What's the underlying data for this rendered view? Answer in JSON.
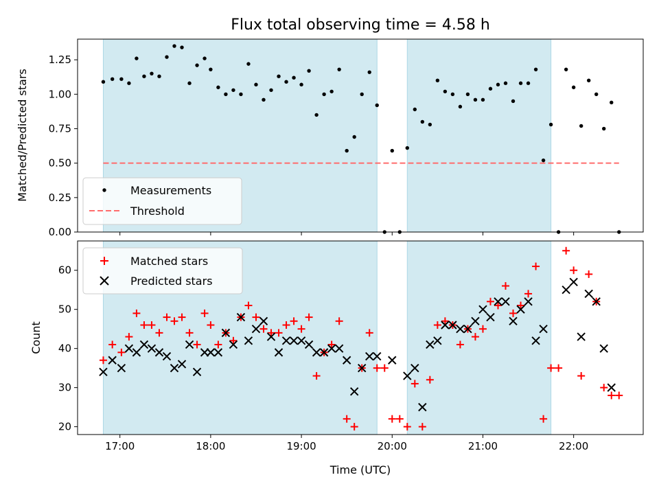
{
  "chart_data": [
    {
      "type": "scatter",
      "title": "Flux total observing time = 4.58 h",
      "ylabel": "Matched/Predicted stars",
      "xlabel": "",
      "xlim": [
        "16:32",
        "22:46"
      ],
      "ylim": [
        0,
        1.4
      ],
      "yticks": [
        "0.00",
        "0.25",
        "0.50",
        "0.75",
        "1.00",
        "1.25"
      ],
      "legend_position": "lower-left",
      "shaded_intervals": [
        [
          "16:49",
          "19:50"
        ],
        [
          "20:10",
          "21:45"
        ]
      ],
      "threshold": {
        "name": "Threshold",
        "value": 0.5,
        "x_range": [
          "16:49",
          "22:30"
        ],
        "color": "#ff6b6b",
        "style": "dashed"
      },
      "series": [
        {
          "name": "Measurements",
          "color": "#000000",
          "marker": "dot",
          "points": [
            [
              "16:49",
              1.09
            ],
            [
              "16:55",
              1.11
            ],
            [
              "17:01",
              1.11
            ],
            [
              "17:06",
              1.08
            ],
            [
              "17:11",
              1.26
            ],
            [
              "17:16",
              1.13
            ],
            [
              "17:21",
              1.15
            ],
            [
              "17:26",
              1.13
            ],
            [
              "17:31",
              1.27
            ],
            [
              "17:36",
              1.35
            ],
            [
              "17:41",
              1.34
            ],
            [
              "17:46",
              1.08
            ],
            [
              "17:51",
              1.21
            ],
            [
              "17:56",
              1.26
            ],
            [
              "18:00",
              1.18
            ],
            [
              "18:05",
              1.05
            ],
            [
              "18:10",
              1.0
            ],
            [
              "18:15",
              1.03
            ],
            [
              "18:20",
              1.0
            ],
            [
              "18:25",
              1.22
            ],
            [
              "18:30",
              1.07
            ],
            [
              "18:35",
              0.96
            ],
            [
              "18:40",
              1.03
            ],
            [
              "18:45",
              1.13
            ],
            [
              "18:50",
              1.09
            ],
            [
              "18:55",
              1.12
            ],
            [
              "19:00",
              1.07
            ],
            [
              "19:05",
              1.17
            ],
            [
              "19:10",
              0.85
            ],
            [
              "19:15",
              1.0
            ],
            [
              "19:20",
              1.02
            ],
            [
              "19:25",
              1.18
            ],
            [
              "19:30",
              0.59
            ],
            [
              "19:35",
              0.69
            ],
            [
              "19:40",
              1.0
            ],
            [
              "19:45",
              1.16
            ],
            [
              "19:50",
              0.92
            ],
            [
              "19:55",
              0.0
            ],
            [
              "20:00",
              0.59
            ],
            [
              "20:05",
              0.0
            ],
            [
              "20:10",
              0.61
            ],
            [
              "20:15",
              0.89
            ],
            [
              "20:20",
              0.8
            ],
            [
              "20:25",
              0.78
            ],
            [
              "20:30",
              1.1
            ],
            [
              "20:35",
              1.02
            ],
            [
              "20:40",
              1.0
            ],
            [
              "20:45",
              0.91
            ],
            [
              "20:50",
              1.0
            ],
            [
              "20:55",
              0.96
            ],
            [
              "21:00",
              0.96
            ],
            [
              "21:05",
              1.04
            ],
            [
              "21:10",
              1.07
            ],
            [
              "21:15",
              1.08
            ],
            [
              "21:20",
              0.95
            ],
            [
              "21:25",
              1.08
            ],
            [
              "21:30",
              1.08
            ],
            [
              "21:35",
              1.18
            ],
            [
              "21:40",
              0.52
            ],
            [
              "21:45",
              0.78
            ],
            [
              "21:50",
              0.0
            ],
            [
              "21:55",
              1.18
            ],
            [
              "22:00",
              1.05
            ],
            [
              "22:05",
              0.77
            ],
            [
              "22:10",
              1.1
            ],
            [
              "22:15",
              1.0
            ],
            [
              "22:20",
              0.75
            ],
            [
              "22:25",
              0.94
            ],
            [
              "22:30",
              0.0
            ]
          ]
        }
      ]
    },
    {
      "type": "scatter",
      "title": "",
      "ylabel": "Count",
      "xlabel": "Time (UTC)",
      "xlim": [
        "16:32",
        "22:46"
      ],
      "ylim": [
        18,
        67.5
      ],
      "yticks": [
        "20",
        "30",
        "40",
        "50",
        "60"
      ],
      "xticks": [
        "17:00",
        "18:00",
        "19:00",
        "20:00",
        "21:00",
        "22:00"
      ],
      "legend_position": "upper-left",
      "shaded_intervals": [
        [
          "16:49",
          "19:50"
        ],
        [
          "20:10",
          "21:45"
        ]
      ],
      "series": [
        {
          "name": "Matched stars",
          "color": "#ff0000",
          "marker": "plus",
          "points": [
            [
              "16:49",
              37
            ],
            [
              "16:55",
              41
            ],
            [
              "17:01",
              39
            ],
            [
              "17:06",
              43
            ],
            [
              "17:11",
              49
            ],
            [
              "17:16",
              46
            ],
            [
              "17:21",
              46
            ],
            [
              "17:26",
              44
            ],
            [
              "17:31",
              48
            ],
            [
              "17:36",
              47
            ],
            [
              "17:41",
              48
            ],
            [
              "17:46",
              44
            ],
            [
              "17:51",
              41
            ],
            [
              "17:56",
              49
            ],
            [
              "18:00",
              46
            ],
            [
              "18:05",
              41
            ],
            [
              "18:10",
              44
            ],
            [
              "18:15",
              42
            ],
            [
              "18:20",
              48
            ],
            [
              "18:25",
              51
            ],
            [
              "18:30",
              48
            ],
            [
              "18:35",
              45
            ],
            [
              "18:40",
              44
            ],
            [
              "18:45",
              44
            ],
            [
              "18:50",
              46
            ],
            [
              "18:55",
              47
            ],
            [
              "19:00",
              45
            ],
            [
              "19:05",
              48
            ],
            [
              "19:10",
              33
            ],
            [
              "19:15",
              39
            ],
            [
              "19:20",
              41
            ],
            [
              "19:25",
              47
            ],
            [
              "19:30",
              22
            ],
            [
              "19:35",
              20
            ],
            [
              "19:40",
              35
            ],
            [
              "19:45",
              44
            ],
            [
              "19:50",
              35
            ],
            [
              "19:55",
              35
            ],
            [
              "20:00",
              22
            ],
            [
              "20:05",
              22
            ],
            [
              "20:10",
              20
            ],
            [
              "20:15",
              31
            ],
            [
              "20:20",
              20
            ],
            [
              "20:25",
              32
            ],
            [
              "20:30",
              46
            ],
            [
              "20:35",
              47
            ],
            [
              "20:40",
              46
            ],
            [
              "20:45",
              41
            ],
            [
              "20:50",
              45
            ],
            [
              "20:55",
              43
            ],
            [
              "21:00",
              45
            ],
            [
              "21:05",
              52
            ],
            [
              "21:10",
              51
            ],
            [
              "21:15",
              56
            ],
            [
              "21:20",
              49
            ],
            [
              "21:25",
              51
            ],
            [
              "21:30",
              54
            ],
            [
              "21:35",
              61
            ],
            [
              "21:40",
              22
            ],
            [
              "21:45",
              35
            ],
            [
              "21:50",
              35
            ],
            [
              "21:55",
              65
            ],
            [
              "22:00",
              60
            ],
            [
              "22:05",
              33
            ],
            [
              "22:10",
              59
            ],
            [
              "22:15",
              52
            ],
            [
              "22:20",
              30
            ],
            [
              "22:25",
              28
            ],
            [
              "22:30",
              28
            ]
          ]
        },
        {
          "name": "Predicted stars",
          "color": "#000000",
          "marker": "x",
          "points": [
            [
              "16:49",
              34
            ],
            [
              "16:55",
              37
            ],
            [
              "17:01",
              35
            ],
            [
              "17:06",
              40
            ],
            [
              "17:11",
              39
            ],
            [
              "17:16",
              41
            ],
            [
              "17:21",
              40
            ],
            [
              "17:26",
              39
            ],
            [
              "17:31",
              38
            ],
            [
              "17:36",
              35
            ],
            [
              "17:41",
              36
            ],
            [
              "17:46",
              41
            ],
            [
              "17:51",
              34
            ],
            [
              "17:56",
              39
            ],
            [
              "18:00",
              39
            ],
            [
              "18:05",
              39
            ],
            [
              "18:10",
              44
            ],
            [
              "18:15",
              41
            ],
            [
              "18:20",
              48
            ],
            [
              "18:25",
              42
            ],
            [
              "18:30",
              45
            ],
            [
              "18:35",
              47
            ],
            [
              "18:40",
              43
            ],
            [
              "18:45",
              39
            ],
            [
              "18:50",
              42
            ],
            [
              "18:55",
              42
            ],
            [
              "19:00",
              42
            ],
            [
              "19:05",
              41
            ],
            [
              "19:10",
              39
            ],
            [
              "19:15",
              39
            ],
            [
              "19:20",
              40
            ],
            [
              "19:25",
              40
            ],
            [
              "19:30",
              37
            ],
            [
              "19:35",
              29
            ],
            [
              "19:40",
              35
            ],
            [
              "19:45",
              38
            ],
            [
              "19:50",
              38
            ],
            [
              "20:00",
              37
            ],
            [
              "20:10",
              33
            ],
            [
              "20:15",
              35
            ],
            [
              "20:20",
              25
            ],
            [
              "20:25",
              41
            ],
            [
              "20:30",
              42
            ],
            [
              "20:35",
              46
            ],
            [
              "20:40",
              46
            ],
            [
              "20:45",
              45
            ],
            [
              "20:50",
              45
            ],
            [
              "20:55",
              47
            ],
            [
              "21:00",
              50
            ],
            [
              "21:05",
              48
            ],
            [
              "21:10",
              52
            ],
            [
              "21:15",
              52
            ],
            [
              "21:20",
              47
            ],
            [
              "21:25",
              50
            ],
            [
              "21:30",
              52
            ],
            [
              "21:35",
              42
            ],
            [
              "21:40",
              45
            ],
            [
              "21:55",
              55
            ],
            [
              "22:00",
              57
            ],
            [
              "22:05",
              43
            ],
            [
              "22:10",
              54
            ],
            [
              "22:15",
              52
            ],
            [
              "22:20",
              40
            ],
            [
              "22:25",
              30
            ]
          ]
        }
      ]
    }
  ]
}
